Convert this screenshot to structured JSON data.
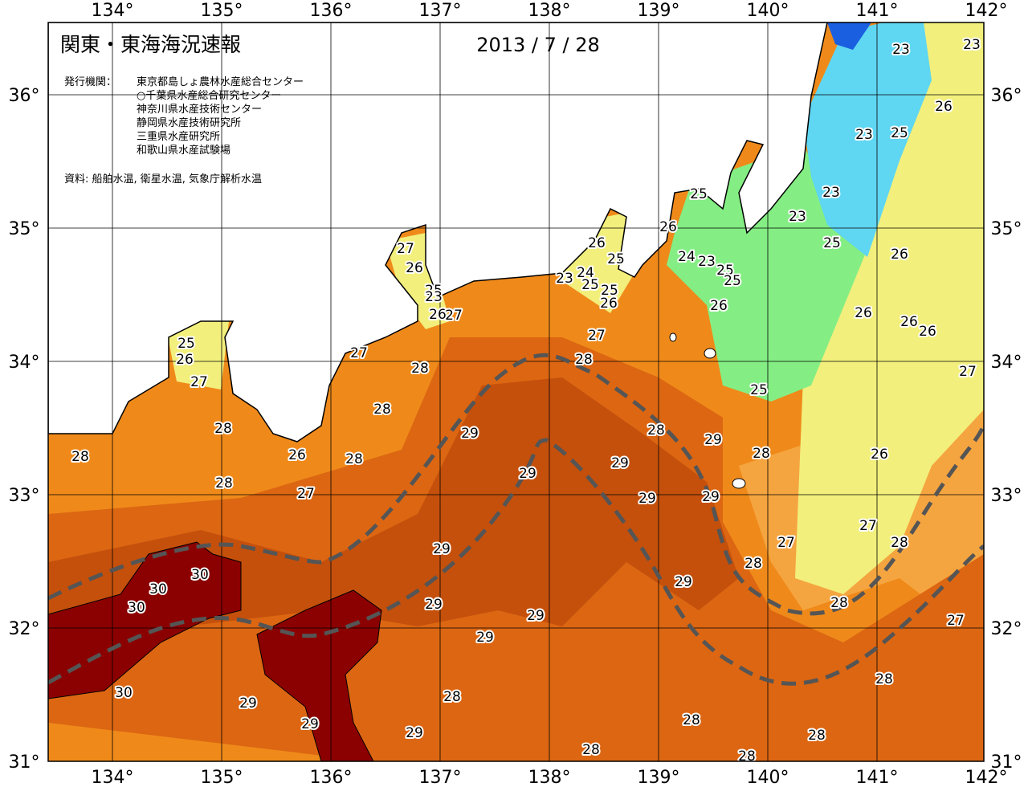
{
  "header": {
    "title": "関東・東海海況速報",
    "date": "2013 / 7 / 28",
    "issuer_label": "発行機関：",
    "issuers": [
      "東京都島しょ農林水産総合センター",
      "○千葉県水産総合研究センター",
      "神奈川県水産技術センター",
      "静岡県水産技術研究所",
      "三重県水産研究所",
      "和歌山県水産試験場"
    ],
    "source": "資料: 船舶水温, 衛星水温, 気象庁解析水温"
  },
  "axes": {
    "longitude_labels": [
      "134°",
      "135°",
      "136°",
      "137°",
      "138°",
      "139°",
      "140°",
      "141°",
      "142°"
    ],
    "latitude_labels": [
      "36°",
      "35°",
      "34°",
      "33°",
      "32°",
      "31°"
    ]
  },
  "contour_labels": [
    23,
    23,
    26,
    23,
    25,
    23,
    23,
    25,
    26,
    26,
    25,
    24,
    23,
    25,
    25,
    26,
    24,
    23,
    25,
    25,
    26,
    25,
    26,
    26,
    26,
    26,
    27,
    25,
    27,
    26,
    25,
    23,
    26,
    27,
    25,
    26,
    27,
    27,
    28,
    27,
    28,
    28,
    28,
    28,
    26,
    28,
    28,
    27,
    29,
    28,
    29,
    28,
    26,
    29,
    29,
    29,
    29,
    27,
    28,
    27,
    28,
    29,
    30,
    30,
    30,
    29,
    29,
    28,
    29,
    27,
    29,
    28,
    30,
    28,
    29,
    28,
    29,
    29,
    28,
    28,
    28
  ]
}
